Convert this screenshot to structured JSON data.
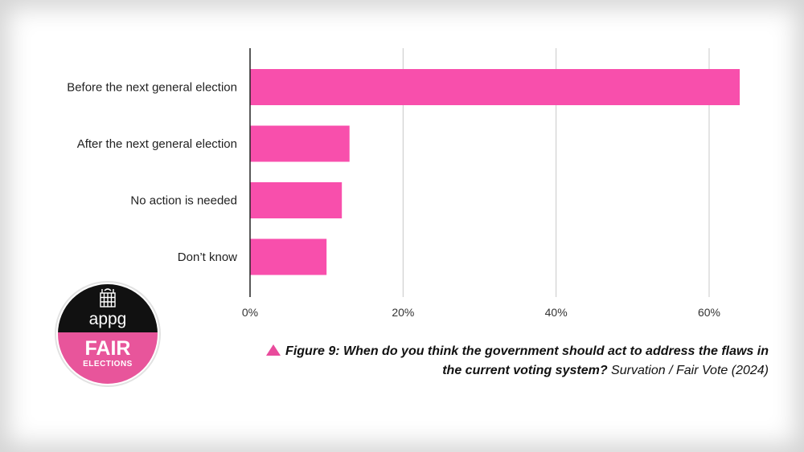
{
  "chart_data": {
    "type": "bar",
    "orientation": "horizontal",
    "categories": [
      "Before the next general election",
      "After the next general election",
      "No action is needed",
      "Don’t know"
    ],
    "values": [
      64,
      13,
      12,
      10
    ],
    "xlim": [
      0,
      70
    ],
    "xticks": [
      0,
      20,
      40,
      60
    ],
    "xtick_labels": [
      "0%",
      "20%",
      "40%",
      "60%"
    ],
    "bar_color": "#f84fac",
    "grid": true
  },
  "caption": {
    "figure_text": "Figure 9: When do you think the government should act to address the flaws in the current voting system?",
    "source": "Survation / Fair Vote (2024)",
    "marker_color": "#e94b9c"
  },
  "logo": {
    "line1": "appg",
    "line2": "FAIR",
    "line3": "ELECTIONS",
    "icon": "portcullis-icon",
    "top_color": "#111111",
    "bottom_color": "#e8559b"
  }
}
